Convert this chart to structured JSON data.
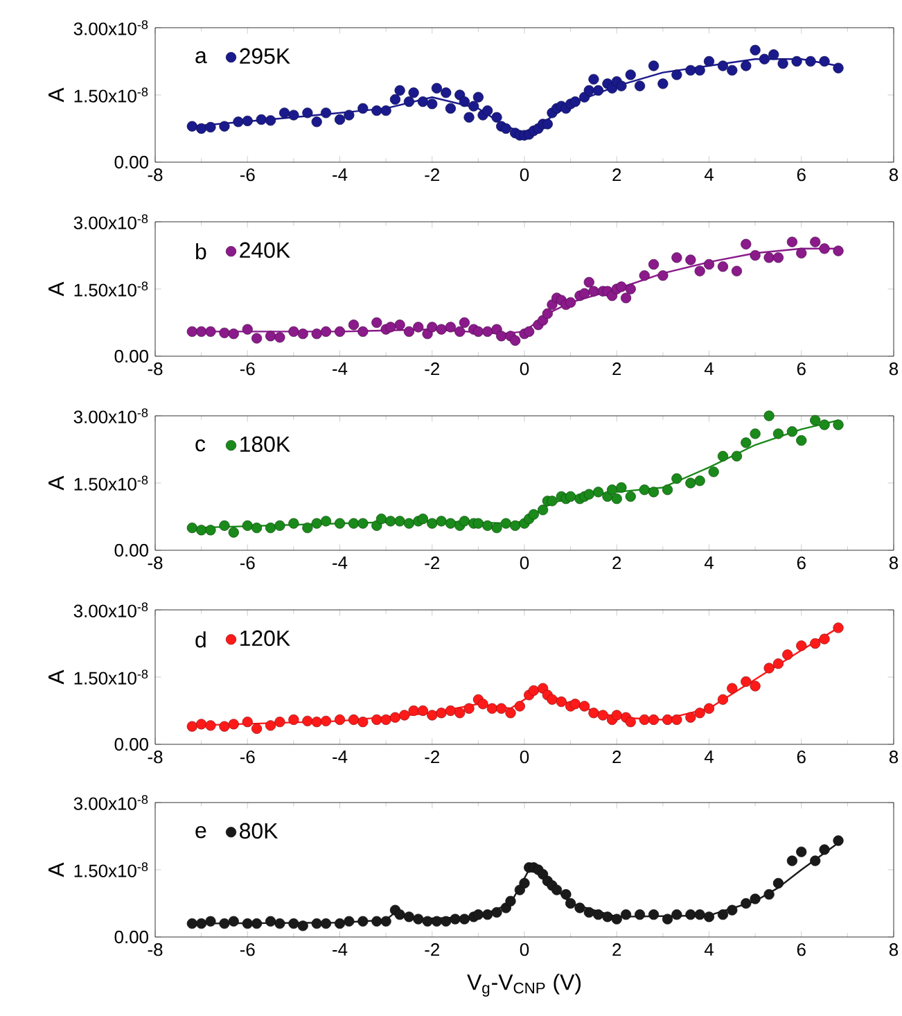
{
  "chart_data": [
    {
      "type": "scatter",
      "ylabel": "A",
      "annotations": [
        "a"
      ],
      "legend": "top left",
      "xlim": [
        -8,
        8
      ],
      "ylim": [
        0,
        3e-08
      ],
      "xticks": [
        -8,
        -6,
        -4,
        -2,
        0,
        2,
        4,
        6,
        8
      ],
      "yticks": [
        {
          "value": 0,
          "label": "0.00"
        },
        {
          "value": 1.5e-08,
          "label": "1.50x10$^{-8}$"
        },
        {
          "value": 3e-08,
          "label": "3.00x10$^{-8}$"
        }
      ],
      "series": [
        {
          "name": "295K",
          "marker": "circle",
          "color": "#1a1a8c",
          "x": [
            -7.2,
            -7.0,
            -6.8,
            -6.5,
            -6.2,
            -6.0,
            -5.7,
            -5.5,
            -5.2,
            -5.0,
            -4.7,
            -4.5,
            -4.3,
            -4.0,
            -3.8,
            -3.5,
            -3.2,
            -3.0,
            -2.8,
            -2.7,
            -2.5,
            -2.4,
            -2.2,
            -2.0,
            -1.9,
            -1.7,
            -1.6,
            -1.4,
            -1.3,
            -1.2,
            -1.1,
            -1.0,
            -0.9,
            -0.8,
            -0.6,
            -0.5,
            -0.4,
            -0.2,
            -0.1,
            0.0,
            0.1,
            0.2,
            0.3,
            0.4,
            0.5,
            0.6,
            0.7,
            0.8,
            0.9,
            1.0,
            1.1,
            1.3,
            1.4,
            1.5,
            1.6,
            1.8,
            1.9,
            2.0,
            2.1,
            2.3,
            2.5,
            2.8,
            3.0,
            3.3,
            3.6,
            3.8,
            4.0,
            4.3,
            4.5,
            4.8,
            5.0,
            5.2,
            5.4,
            5.6,
            5.9,
            6.2,
            6.5,
            6.8
          ],
          "values": [
            8e-09,
            7.5e-09,
            7.8e-09,
            8e-09,
            9e-09,
            9.2e-09,
            9.5e-09,
            9.3e-09,
            1.1e-08,
            1.05e-08,
            1.1e-08,
            9e-09,
            1.1e-08,
            9.5e-09,
            1.05e-08,
            1.2e-08,
            1.15e-08,
            1.15e-08,
            1.4e-08,
            1.6e-08,
            1.35e-08,
            1.55e-08,
            1.35e-08,
            1.3e-08,
            1.65e-08,
            1.55e-08,
            1.2e-08,
            1.5e-08,
            1.35e-08,
            1e-08,
            1.25e-08,
            1.45e-08,
            1.05e-08,
            1.15e-08,
            1e-08,
            8e-09,
            7.5e-09,
            6.5e-09,
            6e-09,
            6e-09,
            6.2e-09,
            7e-09,
            7.5e-09,
            8.5e-09,
            8.5e-09,
            1.1e-08,
            1.2e-08,
            1.25e-08,
            1.2e-08,
            1.3e-08,
            1.35e-08,
            1.45e-08,
            1.6e-08,
            1.85e-08,
            1.6e-08,
            1.75e-08,
            1.65e-08,
            1.8e-08,
            1.7e-08,
            1.95e-08,
            1.7e-08,
            2.15e-08,
            1.75e-08,
            1.95e-08,
            2.05e-08,
            2.05e-08,
            2.25e-08,
            2.15e-08,
            2.05e-08,
            2.15e-08,
            2.5e-08,
            2.3e-08,
            2.4e-08,
            2.2e-08,
            2.25e-08,
            2.25e-08,
            2.25e-08,
            2.1e-08
          ]
        },
        {
          "type": "line",
          "marker": "none",
          "color": "#1a1a8c",
          "x": [
            -7.2,
            -5,
            -3,
            -2,
            -1,
            -0.4,
            0,
            0.5,
            1,
            2,
            3,
            4,
            5,
            6,
            6.8
          ],
          "values": [
            8e-09,
            1e-08,
            1.2e-08,
            1.45e-08,
            1.2e-08,
            8e-09,
            6.5e-09,
            9.5e-09,
            1.3e-08,
            1.7e-08,
            2e-08,
            2.15e-08,
            2.3e-08,
            2.3e-08,
            2.15e-08
          ]
        }
      ]
    },
    {
      "type": "scatter",
      "ylabel": "A",
      "annotations": [
        "b"
      ],
      "legend": "top left",
      "xlim": [
        -8,
        8
      ],
      "ylim": [
        0,
        3e-08
      ],
      "xticks": [
        -8,
        -6,
        -4,
        -2,
        0,
        2,
        4,
        6,
        8
      ],
      "yticks": [
        {
          "value": 0,
          "label": "0.00"
        },
        {
          "value": 1.5e-08,
          "label": "1.50x10$^{-8}$"
        },
        {
          "value": 3e-08,
          "label": "3.00x10$^{-8}$"
        }
      ],
      "series": [
        {
          "name": "240K",
          "marker": "circle",
          "color": "#8b1a8b",
          "x": [
            -7.2,
            -7.0,
            -6.8,
            -6.5,
            -6.3,
            -6.0,
            -5.8,
            -5.5,
            -5.3,
            -5.0,
            -4.8,
            -4.5,
            -4.3,
            -4.0,
            -3.7,
            -3.5,
            -3.2,
            -3.0,
            -2.9,
            -2.7,
            -2.5,
            -2.3,
            -2.1,
            -2.0,
            -1.8,
            -1.6,
            -1.4,
            -1.3,
            -1.1,
            -1.0,
            -0.8,
            -0.6,
            -0.5,
            -0.3,
            -0.2,
            0.0,
            0.1,
            0.3,
            0.4,
            0.5,
            0.6,
            0.7,
            0.8,
            0.9,
            1.0,
            1.2,
            1.3,
            1.4,
            1.5,
            1.7,
            1.8,
            1.9,
            2.0,
            2.1,
            2.2,
            2.3,
            2.6,
            2.8,
            3.0,
            3.3,
            3.6,
            3.8,
            4.0,
            4.3,
            4.6,
            4.8,
            5.0,
            5.3,
            5.5,
            5.8,
            6.0,
            6.3,
            6.5,
            6.8
          ],
          "values": [
            5.5e-09,
            5.5e-09,
            5.5e-09,
            5.2e-09,
            5e-09,
            6e-09,
            4e-09,
            4.5e-09,
            4.2e-09,
            5.5e-09,
            5e-09,
            5e-09,
            5.5e-09,
            5.5e-09,
            7e-09,
            5.5e-09,
            7.5e-09,
            6e-09,
            6.5e-09,
            7e-09,
            5.5e-09,
            6.5e-09,
            5e-09,
            6.5e-09,
            6e-09,
            6.5e-09,
            5.5e-09,
            7.5e-09,
            6e-09,
            5.5e-09,
            5.5e-09,
            6e-09,
            4.5e-09,
            4.5e-09,
            3.5e-09,
            5e-09,
            5.5e-09,
            7e-09,
            8e-09,
            9.5e-09,
            1.15e-08,
            1.3e-08,
            1.25e-08,
            1.15e-08,
            1.2e-08,
            1.35e-08,
            1.4e-08,
            1.65e-08,
            1.45e-08,
            1.45e-08,
            1.45e-08,
            1.35e-08,
            1.5e-08,
            1.55e-08,
            1.3e-08,
            1.5e-08,
            1.8e-08,
            2.05e-08,
            1.8e-08,
            2.2e-08,
            2.15e-08,
            1.9e-08,
            2.05e-08,
            2e-08,
            1.9e-08,
            2.5e-08,
            2.25e-08,
            2.2e-08,
            2.2e-08,
            2.55e-08,
            2.3e-08,
            2.55e-08,
            2.4e-08,
            2.35e-08
          ]
        },
        {
          "type": "line",
          "marker": "none",
          "color": "#8b1a8b",
          "x": [
            -7.2,
            -4,
            -2,
            -0.5,
            0,
            0.5,
            1,
            2,
            3,
            4,
            5,
            6,
            6.8
          ],
          "values": [
            5.5e-09,
            5.5e-09,
            6e-09,
            5e-09,
            5.5e-09,
            9.5e-09,
            1.2e-08,
            1.5e-08,
            1.85e-08,
            2.1e-08,
            2.3e-08,
            2.4e-08,
            2.4e-08
          ]
        }
      ]
    },
    {
      "type": "scatter",
      "ylabel": "A",
      "annotations": [
        "c"
      ],
      "legend": "top left",
      "xlim": [
        -8,
        8
      ],
      "ylim": [
        0,
        3e-08
      ],
      "xticks": [
        -8,
        -6,
        -4,
        -2,
        0,
        2,
        4,
        6,
        8
      ],
      "yticks": [
        {
          "value": 0,
          "label": "0.00"
        },
        {
          "value": 1.5e-08,
          "label": "1.50x10$^{-8}$"
        },
        {
          "value": 3e-08,
          "label": "3.00x10$^{-8}$"
        }
      ],
      "series": [
        {
          "name": "180K",
          "marker": "circle",
          "color": "#1a8a1a",
          "x": [
            -7.2,
            -7.0,
            -6.8,
            -6.5,
            -6.3,
            -6.0,
            -5.8,
            -5.5,
            -5.3,
            -5.0,
            -4.7,
            -4.5,
            -4.3,
            -4.0,
            -3.7,
            -3.5,
            -3.2,
            -3.1,
            -2.9,
            -2.7,
            -2.5,
            -2.3,
            -2.2,
            -2.0,
            -1.8,
            -1.6,
            -1.4,
            -1.3,
            -1.1,
            -1.0,
            -0.8,
            -0.6,
            -0.4,
            -0.2,
            0.0,
            0.1,
            0.2,
            0.4,
            0.5,
            0.6,
            0.8,
            0.9,
            1.0,
            1.2,
            1.3,
            1.4,
            1.6,
            1.8,
            1.9,
            2.0,
            2.1,
            2.3,
            2.6,
            2.8,
            3.1,
            3.3,
            3.6,
            3.8,
            4.1,
            4.3,
            4.6,
            4.8,
            5.0,
            5.3,
            5.5,
            5.8,
            6.0,
            6.3,
            6.5,
            6.8
          ],
          "values": [
            5e-09,
            4.5e-09,
            4.5e-09,
            5.5e-09,
            4e-09,
            5.5e-09,
            5e-09,
            5e-09,
            5.5e-09,
            6e-09,
            5e-09,
            6e-09,
            6.5e-09,
            6e-09,
            6e-09,
            6e-09,
            5.5e-09,
            7e-09,
            6.5e-09,
            6.5e-09,
            6e-09,
            6.5e-09,
            7e-09,
            6e-09,
            6.5e-09,
            6e-09,
            5.5e-09,
            6.5e-09,
            6e-09,
            6e-09,
            5.5e-09,
            5e-09,
            6e-09,
            5.5e-09,
            6e-09,
            7e-09,
            8e-09,
            9e-09,
            1.1e-08,
            1.1e-08,
            1.2e-08,
            1.15e-08,
            1.2e-08,
            1.15e-08,
            1.2e-08,
            1.25e-08,
            1.3e-08,
            1.2e-08,
            1.35e-08,
            1.15e-08,
            1.4e-08,
            1.2e-08,
            1.35e-08,
            1.3e-08,
            1.35e-08,
            1.6e-08,
            1.5e-08,
            1.55e-08,
            1.75e-08,
            2.1e-08,
            2.1e-08,
            2.4e-08,
            2.6e-08,
            3e-08,
            2.6e-08,
            2.65e-08,
            2.45e-08,
            2.9e-08,
            2.8e-08,
            2.8e-08
          ]
        },
        {
          "type": "line",
          "marker": "none",
          "color": "#1a8a1a",
          "x": [
            -7.2,
            -4,
            -2,
            -0.3,
            0,
            0.5,
            1,
            2,
            3,
            4,
            5,
            6,
            6.8
          ],
          "values": [
            5e-09,
            6e-09,
            6.5e-09,
            6e-09,
            6.5e-09,
            1e-08,
            1.2e-08,
            1.3e-08,
            1.4e-08,
            1.85e-08,
            2.35e-08,
            2.7e-08,
            2.9e-08
          ]
        }
      ]
    },
    {
      "type": "scatter",
      "ylabel": "A",
      "annotations": [
        "d"
      ],
      "legend": "top left",
      "xlim": [
        -8,
        8
      ],
      "ylim": [
        0,
        3e-08
      ],
      "xticks": [
        -8,
        -6,
        -4,
        -2,
        0,
        2,
        4,
        6,
        8
      ],
      "yticks": [
        {
          "value": 0,
          "label": "0.00"
        },
        {
          "value": 1.5e-08,
          "label": "1.50x10$^{-8}$"
        },
        {
          "value": 3e-08,
          "label": "3.00x10$^{-8}$"
        }
      ],
      "series": [
        {
          "name": "120K",
          "marker": "circle",
          "color": "#ff1a1a",
          "x": [
            -7.2,
            -7.0,
            -6.8,
            -6.5,
            -6.3,
            -6.0,
            -5.8,
            -5.5,
            -5.3,
            -5.0,
            -4.7,
            -4.5,
            -4.3,
            -4.0,
            -3.7,
            -3.5,
            -3.2,
            -3.0,
            -2.8,
            -2.6,
            -2.4,
            -2.2,
            -2.0,
            -1.8,
            -1.6,
            -1.4,
            -1.2,
            -1.0,
            -0.9,
            -0.7,
            -0.5,
            -0.3,
            -0.1,
            0.1,
            0.2,
            0.4,
            0.5,
            0.6,
            0.8,
            1.0,
            1.1,
            1.3,
            1.5,
            1.7,
            1.9,
            2.0,
            2.2,
            2.3,
            2.6,
            2.8,
            3.1,
            3.3,
            3.6,
            3.8,
            4.0,
            4.3,
            4.5,
            4.8,
            5.0,
            5.3,
            5.5,
            5.7,
            6.0,
            6.3,
            6.5,
            6.8
          ],
          "values": [
            4e-09,
            4.5e-09,
            4.2e-09,
            4e-09,
            4.5e-09,
            5e-09,
            3.5e-09,
            4.2e-09,
            5e-09,
            5.5e-09,
            5.2e-09,
            5e-09,
            5.2e-09,
            5.5e-09,
            5.5e-09,
            5e-09,
            5.5e-09,
            5.5e-09,
            6e-09,
            6.5e-09,
            7.5e-09,
            7.5e-09,
            6.5e-09,
            7e-09,
            7.5e-09,
            7e-09,
            8e-09,
            1e-08,
            9e-09,
            8e-09,
            8e-09,
            7e-09,
            8.5e-09,
            1.1e-08,
            1.2e-08,
            1.25e-08,
            1.1e-08,
            1e-08,
            9.5e-09,
            8.5e-09,
            9e-09,
            8.5e-09,
            7e-09,
            6.5e-09,
            5.5e-09,
            6.5e-09,
            6e-09,
            5e-09,
            5.5e-09,
            5.5e-09,
            5.5e-09,
            5.5e-09,
            6e-09,
            7e-09,
            8e-09,
            1e-08,
            1.25e-08,
            1.4e-08,
            1.3e-08,
            1.7e-08,
            1.8e-08,
            2e-08,
            2.2e-08,
            2.25e-08,
            2.35e-08,
            2.6e-08
          ]
        },
        {
          "type": "line",
          "marker": "none",
          "color": "#ff1a1a",
          "x": [
            -7.2,
            -4,
            -2,
            -1,
            -0.3,
            0.3,
            1,
            2,
            3,
            4,
            5,
            6,
            6.8
          ],
          "values": [
            4.2e-09,
            5.2e-09,
            7e-09,
            9e-09,
            8e-09,
            1.2e-08,
            9e-09,
            6e-09,
            5.5e-09,
            8e-09,
            1.45e-08,
            2.1e-08,
            2.6e-08
          ]
        }
      ]
    },
    {
      "type": "scatter",
      "xlabel": "V$_{g}$-V$_{CNP}$ (V)",
      "ylabel": "A",
      "annotations": [
        "e"
      ],
      "legend": "top left",
      "xlim": [
        -8,
        8
      ],
      "ylim": [
        0,
        3e-08
      ],
      "xticks": [
        -8,
        -6,
        -4,
        -2,
        0,
        2,
        4,
        6,
        8
      ],
      "yticks": [
        {
          "value": 0,
          "label": "0.00"
        },
        {
          "value": 1.5e-08,
          "label": "1.50x10$^{-8}$"
        },
        {
          "value": 3e-08,
          "label": "3.00x10$^{-8}$"
        }
      ],
      "series": [
        {
          "name": "80K",
          "marker": "circle",
          "color": "#1a1a1a",
          "x": [
            -7.2,
            -7.0,
            -6.8,
            -6.5,
            -6.3,
            -6.0,
            -5.8,
            -5.5,
            -5.3,
            -5.0,
            -4.8,
            -4.5,
            -4.3,
            -4.0,
            -3.8,
            -3.5,
            -3.2,
            -3.0,
            -2.8,
            -2.7,
            -2.5,
            -2.3,
            -2.1,
            -1.9,
            -1.7,
            -1.5,
            -1.3,
            -1.1,
            -1.0,
            -0.8,
            -0.6,
            -0.4,
            -0.3,
            -0.1,
            0.0,
            0.1,
            0.2,
            0.3,
            0.4,
            0.5,
            0.6,
            0.7,
            0.9,
            1.0,
            1.2,
            1.4,
            1.6,
            1.8,
            2.0,
            2.2,
            2.5,
            2.8,
            3.1,
            3.3,
            3.6,
            3.8,
            4.0,
            4.3,
            4.5,
            4.8,
            5.0,
            5.3,
            5.5,
            5.8,
            6.0,
            6.3,
            6.5,
            6.8
          ],
          "values": [
            3e-09,
            3e-09,
            3.5e-09,
            3e-09,
            3.5e-09,
            3e-09,
            3e-09,
            3.5e-09,
            3e-09,
            3e-09,
            2.5e-09,
            3e-09,
            3e-09,
            3e-09,
            3.5e-09,
            3.5e-09,
            3.5e-09,
            3.5e-09,
            6e-09,
            5e-09,
            4.5e-09,
            4e-09,
            3.5e-09,
            3.5e-09,
            3.5e-09,
            4e-09,
            4e-09,
            4.5e-09,
            5e-09,
            5e-09,
            5.5e-09,
            6.5e-09,
            8e-09,
            1.05e-08,
            1.2e-08,
            1.55e-08,
            1.55e-08,
            1.5e-08,
            1.4e-08,
            1.25e-08,
            1.15e-08,
            1.05e-08,
            9.5e-09,
            7.5e-09,
            6.5e-09,
            5.5e-09,
            5e-09,
            4.5e-09,
            4e-09,
            5e-09,
            5e-09,
            5e-09,
            4e-09,
            5e-09,
            5e-09,
            5e-09,
            4.5e-09,
            5e-09,
            6e-09,
            7.5e-09,
            8.5e-09,
            9.5e-09,
            1.2e-08,
            1.7e-08,
            1.9e-08,
            1.7e-08,
            1.95e-08,
            2.15e-08
          ]
        },
        {
          "type": "line",
          "marker": "none",
          "color": "#1a1a1a",
          "x": [
            -7.2,
            -4,
            -3,
            -2.8,
            -2.5,
            -1,
            -0.3,
            0.1,
            0.3,
            1,
            2,
            4,
            5,
            5.5,
            6,
            6.8
          ],
          "values": [
            3e-09,
            3.2e-09,
            3.8e-09,
            5.5e-09,
            4e-09,
            4.5e-09,
            7.5e-09,
            1.5e-08,
            1.45e-08,
            7.5e-09,
            4.5e-09,
            4.8e-09,
            8e-09,
            1.1e-08,
            1.5e-08,
            2.1e-08
          ]
        }
      ]
    }
  ]
}
